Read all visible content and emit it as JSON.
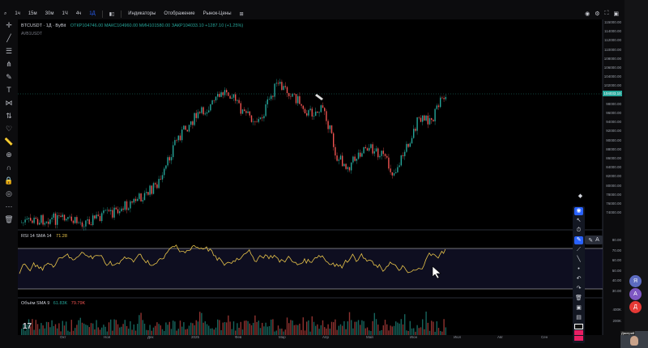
{
  "toolbar": {
    "symbol": "BTCUSDT",
    "intervals": [
      "1ч",
      "15м",
      "30м",
      "1Ч",
      "4ч",
      "1Д"
    ],
    "active_interval": "1Д",
    "indicators": "Индикаторы",
    "display": "Отображение",
    "replay": "Рынок-Цены"
  },
  "legend": {
    "symbol": "BTCUSDT · 1Д · ByBit",
    "ohlc": "ОТКР104746.00 МАКС104960.00 МИН101580.00 ЗАКР104033.10 +1287.10 (+1.25%)",
    "sub": "AVB1USDT"
  },
  "rsi": {
    "label": "RSI 14 SMA 14",
    "value": "71.28"
  },
  "volume": {
    "label": "Объём SMA 9",
    "value": "61.83K",
    "value2": "79.79K"
  },
  "price_axis": {
    "ticks": [
      "115000.00",
      "114000.00",
      "112000.00",
      "110000.00",
      "108000.00",
      "106000.00",
      "104000.00",
      "102000.00",
      "100000.00",
      "98000.00",
      "96000.00",
      "94000.00",
      "92000.00",
      "90000.00",
      "88000.00",
      "86000.00",
      "84000.00",
      "82000.00",
      "80000.00",
      "78000.00",
      "76000.00",
      "74000.00"
    ],
    "current": "104033.10",
    "rsi_ticks": [
      "80.00",
      "70.00",
      "60.00",
      "50.00",
      "40.00",
      "30.00"
    ],
    "vol_ticks": [
      "400K",
      "200K"
    ]
  },
  "time_axis": [
    "Окт",
    "Ноя",
    "Дек",
    "2025",
    "Фев",
    "Мар",
    "Апр",
    "Май",
    "Июн",
    "Июл",
    "Авг",
    "Сен"
  ],
  "sidebar": {
    "avatar1": "Я",
    "avatar2": "А",
    "avatar3": "Д",
    "self_name": "Дмитрий"
  },
  "colors": {
    "up": "#26a69a",
    "down": "#ef5350",
    "rsi": "#e8c44a",
    "accent": "#2962ff"
  }
}
